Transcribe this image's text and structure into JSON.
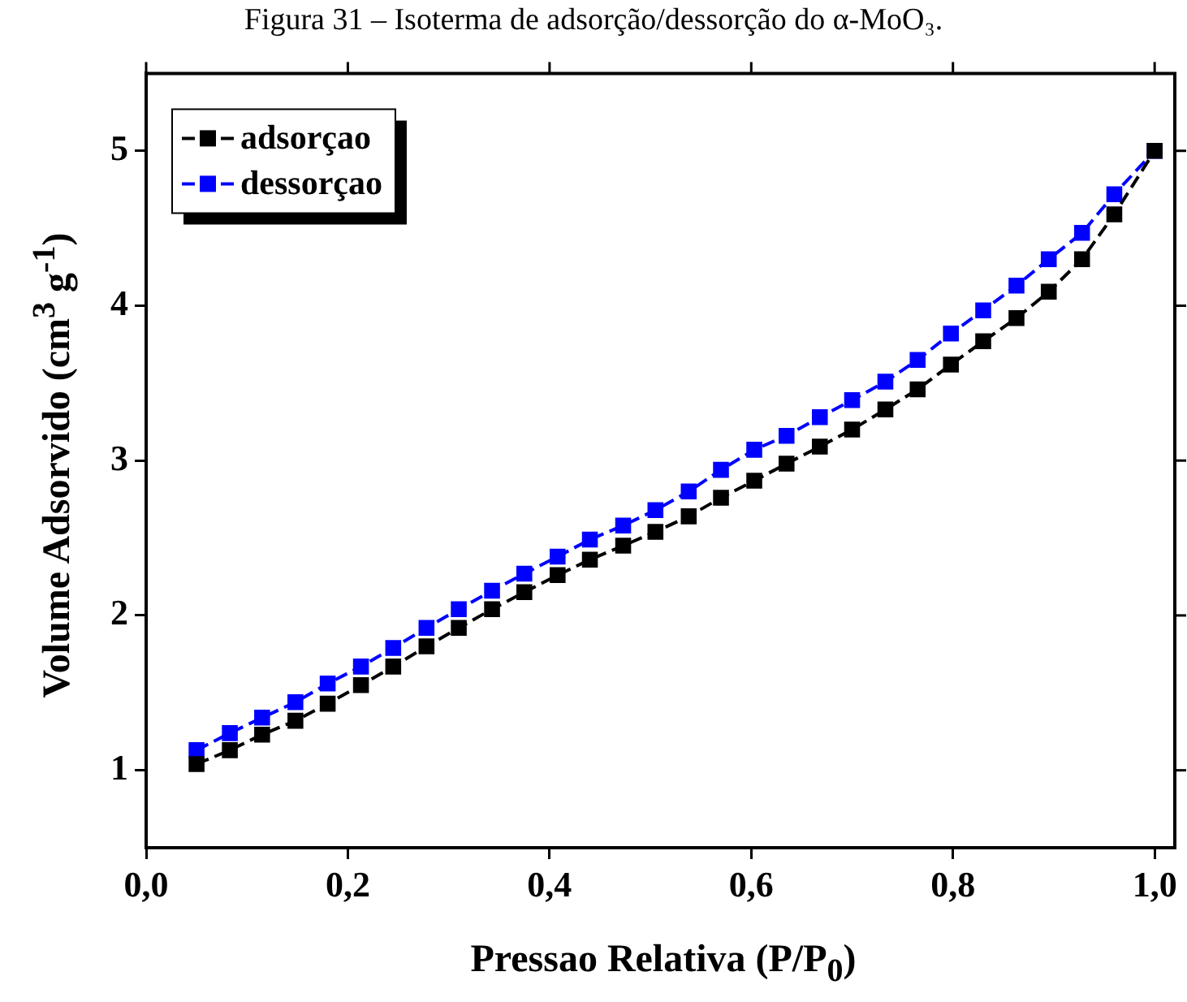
{
  "chart_data": {
    "type": "line",
    "title": "Figura 31 – Isoterma de adsorção/dessorção do α-MoO₃.",
    "xlabel": "Pressao Relativa (P/P$_{0}$)",
    "ylabel": "Volume Adsorvido (cm$^{3}$ g$^{-1}$)",
    "x": [
      0.05,
      0.083,
      0.115,
      0.148,
      0.18,
      0.213,
      0.245,
      0.278,
      0.31,
      0.343,
      0.375,
      0.408,
      0.44,
      0.473,
      0.505,
      0.538,
      0.57,
      0.603,
      0.635,
      0.668,
      0.7,
      0.733,
      0.765,
      0.798,
      0.83,
      0.863,
      0.895,
      0.928,
      0.96,
      1.0
    ],
    "series": [
      {
        "name": "adsorçao",
        "color": "#000000",
        "values": [
          1.04,
          1.13,
          1.23,
          1.32,
          1.43,
          1.55,
          1.67,
          1.8,
          1.92,
          2.04,
          2.15,
          2.26,
          2.36,
          2.45,
          2.54,
          2.64,
          2.76,
          2.87,
          2.98,
          3.09,
          3.2,
          3.33,
          3.46,
          3.62,
          3.77,
          3.92,
          4.09,
          4.3,
          4.59,
          5.0
        ]
      },
      {
        "name": "dessorçao",
        "color": "#0000ff",
        "values": [
          1.13,
          1.24,
          1.34,
          1.44,
          1.56,
          1.67,
          1.79,
          1.92,
          2.04,
          2.16,
          2.27,
          2.38,
          2.49,
          2.58,
          2.68,
          2.8,
          2.94,
          3.07,
          3.16,
          3.28,
          3.39,
          3.51,
          3.65,
          3.82,
          3.97,
          4.13,
          4.3,
          4.47,
          4.72,
          5.0
        ]
      }
    ],
    "xlim": [
      0,
      1.02
    ],
    "ylim": [
      0.5,
      5.5
    ],
    "xticks": [
      {
        "value": 0,
        "label": "0,0"
      },
      {
        "value": 0.2,
        "label": "0,2"
      },
      {
        "value": 0.4,
        "label": "0,4"
      },
      {
        "value": 0.6,
        "label": "0,6"
      },
      {
        "value": 0.8,
        "label": "0,8"
      },
      {
        "value": 1.0,
        "label": "1,0"
      }
    ],
    "yticks": [
      1,
      2,
      3,
      4,
      5
    ],
    "grid": false,
    "legend": "top left",
    "marker": "square",
    "line_style": "dashed"
  }
}
